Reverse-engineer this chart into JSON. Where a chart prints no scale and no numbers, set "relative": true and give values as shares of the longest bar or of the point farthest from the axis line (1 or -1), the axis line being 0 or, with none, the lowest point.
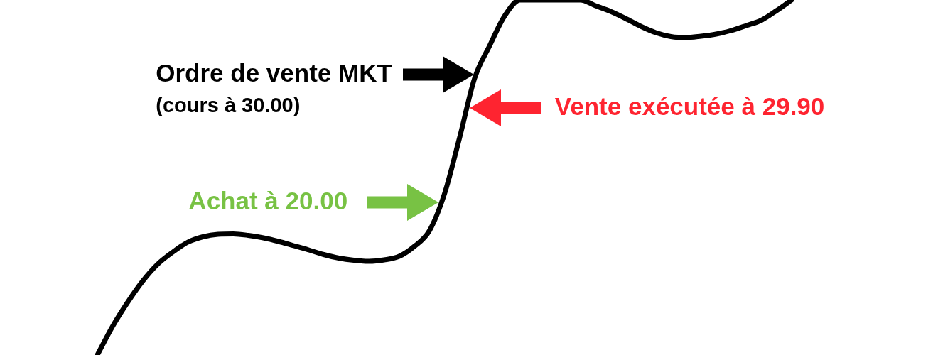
{
  "chart_data": {
    "type": "line",
    "relative": true,
    "categories": [
      null,
      null,
      null,
      null,
      null,
      null,
      null,
      null,
      null,
      null,
      null,
      null,
      null,
      null,
      null,
      null,
      null,
      null,
      null,
      null,
      null,
      null,
      null,
      null,
      null,
      null,
      null,
      null,
      null,
      null,
      null,
      null,
      null,
      null,
      null,
      null,
      null,
      null,
      null,
      null,
      null,
      null,
      null,
      null,
      null,
      null,
      null
    ],
    "values": [
      0,
      0.08,
      0.148,
      0.208,
      0.256,
      0.29,
      0.318,
      0.333,
      0.34,
      0.341,
      0.337,
      0.33,
      0.32,
      0.308,
      0.296,
      0.283,
      0.273,
      0.267,
      0.264,
      0.268,
      0.278,
      0.306,
      0.35,
      0.454,
      0.612,
      0.78,
      0.872,
      0.956,
      1,
      1,
      1,
      1,
      1,
      0.984,
      0.968,
      0.948,
      0.926,
      0.908,
      0.897,
      0.894,
      0.898,
      0.904,
      0.914,
      0.928,
      0.943,
      0.97,
      1
    ],
    "color": "#000000",
    "annotations": [
      "Ordre de vente MKT",
      "(cours à 30.00)",
      "Vente exécutée à 29.90",
      "Achat à 20.00"
    ]
  }
}
